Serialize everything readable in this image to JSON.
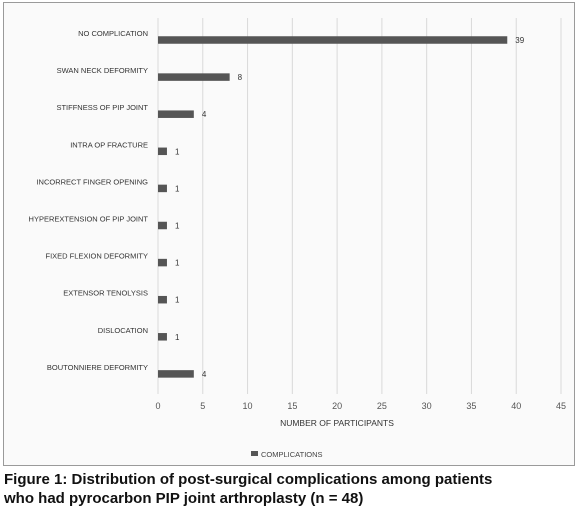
{
  "chart_data": {
    "type": "bar",
    "orientation": "horizontal",
    "categories": [
      "NO COMPLICATION",
      "SWAN NECK DEFORMITY",
      "STIFFNESS OF PIP JOINT",
      "INTRA OP FRACTURE",
      "INCORRECT FINGER OPENING",
      "HYPEREXTENSION OF PIP JOINT",
      "FIXED FLEXION DEFORMITY",
      "EXTENSOR TENOLYSIS",
      "DISLOCATION",
      "BOUTONNIERE DEFORMITY"
    ],
    "series": [
      {
        "name": "COMPLICATIONS",
        "values": [
          39,
          8,
          4,
          1,
          1,
          1,
          1,
          1,
          1,
          4
        ]
      }
    ],
    "xlabel": "NUMBER OF PARTICIPANTS",
    "ylabel": "",
    "xlim": [
      0,
      45
    ],
    "xticks": [
      0,
      5,
      10,
      15,
      20,
      25,
      30,
      35,
      40,
      45
    ],
    "grid": "vertical",
    "legend": "bottom-center",
    "colors": {
      "bar": "#555555",
      "grid": "#d9d9d9",
      "background": "#fafafa"
    }
  },
  "caption": {
    "line1": "Figure 1:  Distribution of post-surgical complications among patients",
    "line2": "who had pyrocarbon PIP joint arthroplasty (n = 48)"
  }
}
